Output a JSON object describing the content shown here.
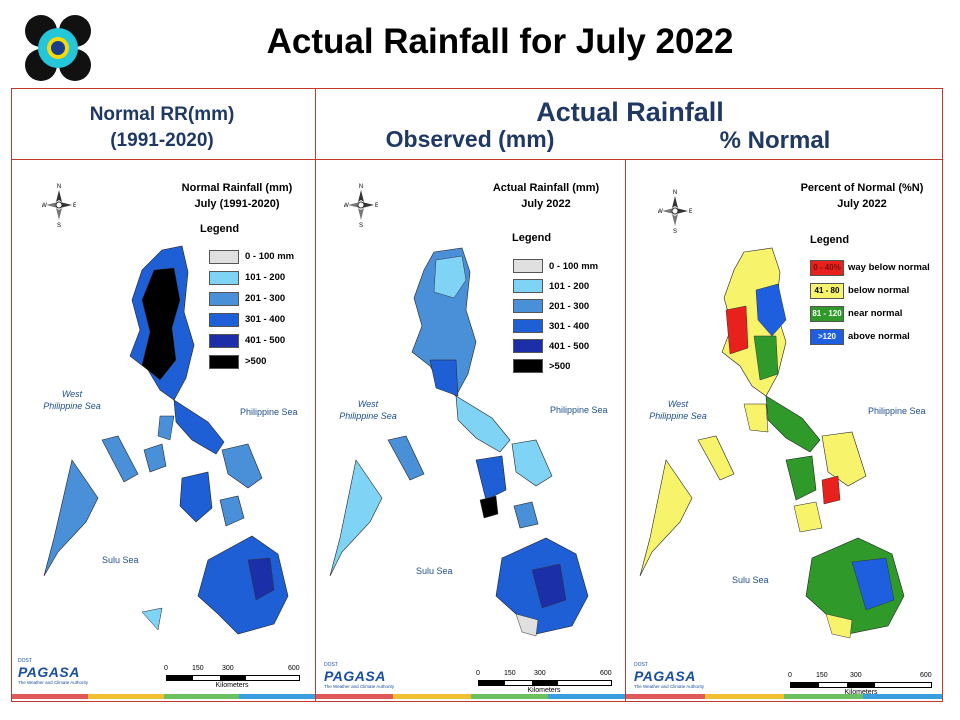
{
  "slide": {
    "title": "Actual Rainfall for July 2022"
  },
  "headers": {
    "normal_line1": "Normal RR(mm)",
    "normal_line2": "(1991-2020)",
    "actual": "Actual Rainfall",
    "observed": "Observed (mm)",
    "percent": "% Normal"
  },
  "compass": {
    "n": "N",
    "s": "S",
    "e": "E",
    "w": "W"
  },
  "seas": {
    "west_line1": "West",
    "west_line2": "Philippine Sea",
    "philippine": "Philippine Sea",
    "sulu": "Sulu Sea"
  },
  "scale": {
    "ticks": [
      "0",
      "150",
      "300",
      "600"
    ],
    "unit": "Kilometers"
  },
  "branding": {
    "name": "PAGASA",
    "dost": "DOST",
    "sub": "The Weather and Climate Authority"
  },
  "panels": [
    {
      "id": "normal",
      "title_line1": "Normal Rainfall (mm)",
      "title_line2": "July (1991-2020)",
      "legend_title": "Legend",
      "legend": [
        {
          "label": "0 - 100 mm",
          "color": "#e0e0e0"
        },
        {
          "label": "101 - 200",
          "color": "#7fd3f5"
        },
        {
          "label": "201 - 300",
          "color": "#4a90d9"
        },
        {
          "label": "301 - 400",
          "color": "#1f5fd6"
        },
        {
          "label": "401 - 500",
          "color": "#1a2fa8"
        },
        {
          "label": ">500",
          "color": "#000000"
        }
      ]
    },
    {
      "id": "observed",
      "title_line1": "Actual Rainfall (mm)",
      "title_line2": "July 2022",
      "legend_title": "Legend",
      "legend": [
        {
          "label": "0 - 100 mm",
          "color": "#e0e0e0"
        },
        {
          "label": "101 - 200",
          "color": "#7fd3f5"
        },
        {
          "label": "201 - 300",
          "color": "#4a90d9"
        },
        {
          "label": "301 - 400",
          "color": "#1f5fd6"
        },
        {
          "label": "401 - 500",
          "color": "#1a2fa8"
        },
        {
          "label": ">500",
          "color": "#000000"
        }
      ]
    },
    {
      "id": "percent",
      "title_line1": "Percent of Normal (%N)",
      "title_line2": "July 2022",
      "legend_title": "Legend",
      "legend": [
        {
          "swatch_text": "0 - 40%",
          "label": "way below normal",
          "color": "#e8211c",
          "text_color": "#7a1010"
        },
        {
          "swatch_text": "41 - 80",
          "label": "below normal",
          "color": "#f7f36b",
          "text_color": "#000000"
        },
        {
          "swatch_text": "81 - 120",
          "label": "near normal",
          "color": "#2f9a2a",
          "text_color": "#ffffff"
        },
        {
          "swatch_text": ">120",
          "label": "above normal",
          "color": "#1e5fe0",
          "text_color": "#ffffff"
        }
      ]
    }
  ],
  "colors": {
    "frame": "#c0392b",
    "header_text": "#1f3864",
    "stripe": [
      "#e05a5a",
      "#f0c030",
      "#6cc060",
      "#3a9fe0"
    ]
  }
}
